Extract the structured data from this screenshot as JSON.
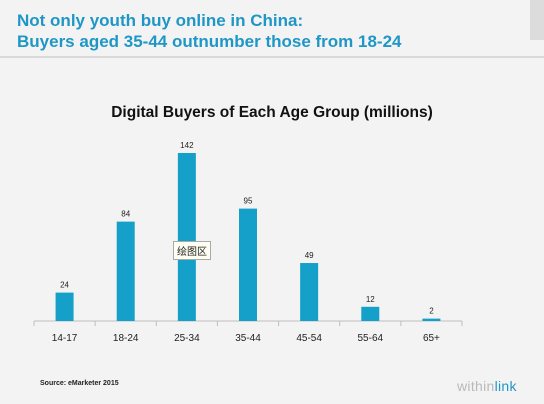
{
  "headline": {
    "line1": "Not only youth buy online in China:",
    "line2": "Buyers aged 35-44 outnumber those from 18-24"
  },
  "chart_data": {
    "type": "bar",
    "title": "Digital Buyers of Each Age Group (millions)",
    "categories": [
      "14-17",
      "18-24",
      "25-34",
      "35-44",
      "45-54",
      "55-64",
      "65+"
    ],
    "values": [
      24,
      84,
      142,
      95,
      49,
      12,
      2
    ],
    "xlabel": "",
    "ylabel": "",
    "ylim": [
      0,
      142
    ],
    "grid": false,
    "legend": "none",
    "bar_color": "#14a0c8"
  },
  "tooltip_text": "绘图区",
  "source": "Source: eMarketer 2015",
  "logo": {
    "part1": "within",
    "part2": "link"
  },
  "colors": {
    "accent": "#1f97c6",
    "bar": "#14a0c8",
    "background": "#f3f3f3"
  }
}
